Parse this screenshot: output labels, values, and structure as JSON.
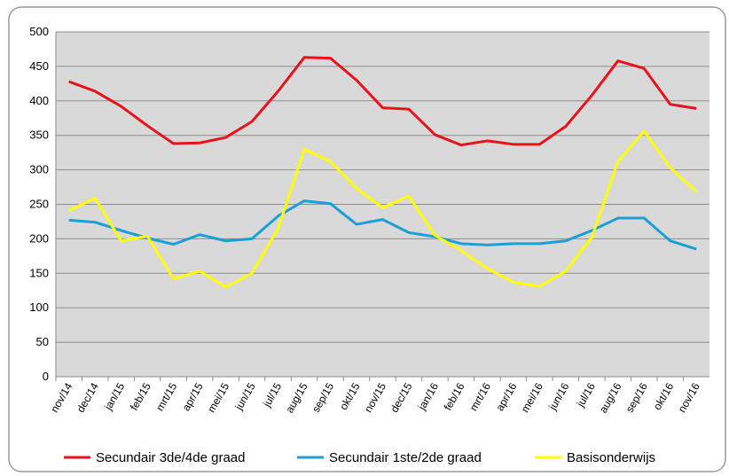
{
  "chart_data": {
    "type": "line",
    "categories": [
      "nov/14",
      "dec/14",
      "jan/15",
      "feb/15",
      "mrt/15",
      "apr/15",
      "mei/15",
      "jun/15",
      "jul/15",
      "aug/15",
      "sep/15",
      "okt/15",
      "nov/15",
      "dec/15",
      "jan/16",
      "feb/16",
      "mrt/16",
      "apr/16",
      "mei/16",
      "jun/16",
      "jul/16",
      "aug/16",
      "sep/16",
      "okt/16",
      "nov/16"
    ],
    "series": [
      {
        "name": "Secundair 3de/4de graad",
        "color": "#e8121a",
        "values": [
          428,
          414,
          392,
          364,
          338,
          339,
          347,
          370,
          414,
          463,
          462,
          430,
          390,
          388,
          351,
          336,
          342,
          337,
          337,
          363,
          408,
          458,
          447,
          395,
          389
        ]
      },
      {
        "name": "Secundair 1ste/2de graad",
        "color": "#1a9fd6",
        "values": [
          227,
          224,
          212,
          201,
          192,
          206,
          197,
          200,
          233,
          255,
          251,
          221,
          228,
          209,
          203,
          193,
          191,
          193,
          193,
          197,
          212,
          230,
          230,
          197,
          185
        ]
      },
      {
        "name": "Basisonderwijs",
        "color": "#ffff00",
        "values": [
          241,
          259,
          197,
          204,
          142,
          153,
          130,
          150,
          215,
          330,
          312,
          273,
          245,
          262,
          205,
          183,
          157,
          137,
          131,
          153,
          202,
          312,
          356,
          303,
          268
        ]
      }
    ],
    "ylim": [
      0,
      500
    ],
    "yticks": [
      0,
      50,
      100,
      150,
      200,
      250,
      300,
      350,
      400,
      450,
      500
    ],
    "grid": true
  }
}
